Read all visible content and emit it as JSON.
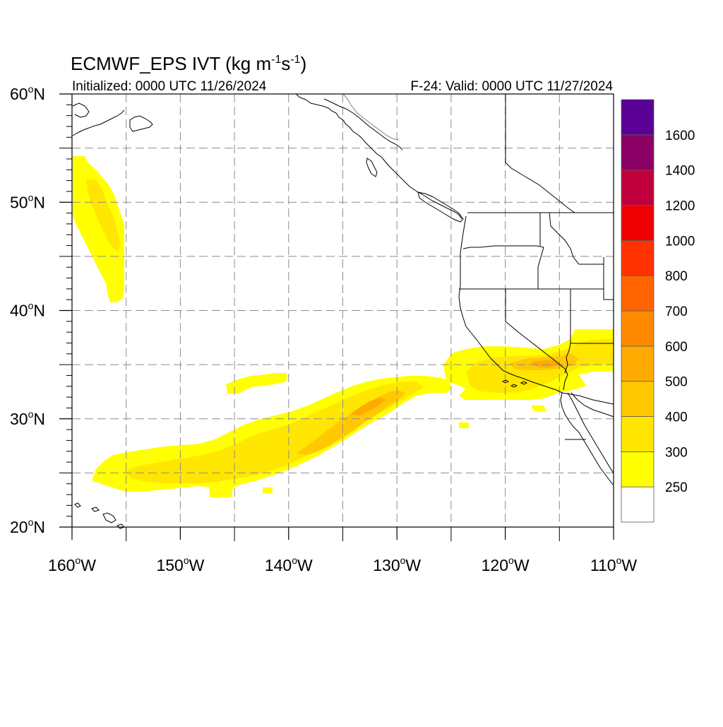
{
  "title": {
    "prefix": "ECMWF_EPS IVT (kg m",
    "sup1": "-1",
    "mid": "s",
    "sup2": "-1",
    "suffix": ")"
  },
  "subtitle_left": "Initialized: 0000 UTC 11/26/2024",
  "subtitle_right": "F-24: Valid: 0000 UTC 11/27/2024",
  "map": {
    "lon_range": [
      -160,
      -110
    ],
    "lat_range": [
      20,
      60
    ],
    "x_ticks": [
      {
        "lon": -160,
        "label": "160"
      },
      {
        "lon": -150,
        "label": "150"
      },
      {
        "lon": -140,
        "label": "140"
      },
      {
        "lon": -130,
        "label": "130"
      },
      {
        "lon": -120,
        "label": "120"
      },
      {
        "lon": -110,
        "label": "110"
      }
    ],
    "x_suffix": "W",
    "y_ticks": [
      {
        "lat": 60,
        "label": "60"
      },
      {
        "lat": 50,
        "label": "50"
      },
      {
        "lat": 40,
        "label": "40"
      },
      {
        "lat": 30,
        "label": "30"
      },
      {
        "lat": 20,
        "label": "20"
      }
    ],
    "y_suffix": "N",
    "degree_symbol": "o",
    "gridlines": "dashed, every 5 degrees"
  },
  "colorbar": {
    "levels": [
      "250",
      "300",
      "400",
      "500",
      "600",
      "700",
      "800",
      "1000",
      "1200",
      "1400",
      "1600"
    ],
    "colors": [
      "#ffffff",
      "#ffff00",
      "#ffe600",
      "#ffc800",
      "#ffaa00",
      "#ff8a00",
      "#ff6400",
      "#ff3200",
      "#ee0000",
      "#c0003c",
      "#8a0064",
      "#5a0096"
    ]
  },
  "ivt_features": [
    {
      "name": "gulf-of-alaska-plume",
      "level": 1
    },
    {
      "name": "gulf-of-alaska-plume-core",
      "level": 2
    },
    {
      "name": "atmospheric-river-main",
      "level": 1
    },
    {
      "name": "atmospheric-river-main-mid",
      "level": 2
    },
    {
      "name": "atmospheric-river-main-core",
      "level": 3
    },
    {
      "name": "atmospheric-river-main-max",
      "level": 4
    },
    {
      "name": "southern-california-plume",
      "level": 1
    },
    {
      "name": "southern-california-plume-mid",
      "level": 2
    },
    {
      "name": "southern-california-plume-core",
      "level": 3
    },
    {
      "name": "southern-california-plume-max",
      "level": 4
    }
  ]
}
